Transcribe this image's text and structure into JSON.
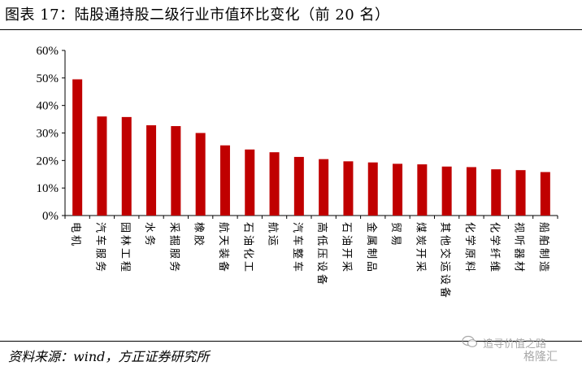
{
  "figure": {
    "title": "图表 17：陆股通持股二级行业市值环比变化（前 20 名）",
    "source": "资料来源：wind，方正证券研究所",
    "watermark": {
      "line1": "追寻价值之路",
      "line2": "格隆汇",
      "icon": "wechat-icon"
    }
  },
  "chart_data": {
    "type": "bar",
    "title": "图表 17：陆股通持股二级行业市值环比变化（前 20 名）",
    "xlabel": "",
    "ylabel": "",
    "categories": [
      "电机",
      "汽车服务",
      "园林工程",
      "水务",
      "采掘服务",
      "橡胶",
      "航天装备",
      "石油化工",
      "航运",
      "汽车整车",
      "高低压设备",
      "石油开采",
      "金属制品",
      "贸易",
      "煤炭开采",
      "其他交运设备",
      "化学原料",
      "化学纤维",
      "视听器材",
      "船舶制造"
    ],
    "values": [
      49.5,
      36.0,
      35.8,
      32.8,
      32.5,
      30.0,
      25.5,
      24.0,
      23.0,
      21.3,
      20.5,
      19.7,
      19.3,
      18.8,
      18.6,
      17.8,
      17.6,
      16.8,
      16.5,
      15.8
    ],
    "ylim": [
      0,
      60
    ],
    "yticks": [
      0,
      10,
      20,
      30,
      40,
      50,
      60
    ],
    "ytick_labels": [
      "0%",
      "10%",
      "20%",
      "30%",
      "40%",
      "50%",
      "60%"
    ],
    "unit": "%",
    "grid": false,
    "legend": "none",
    "bar_color": "#C00000"
  }
}
